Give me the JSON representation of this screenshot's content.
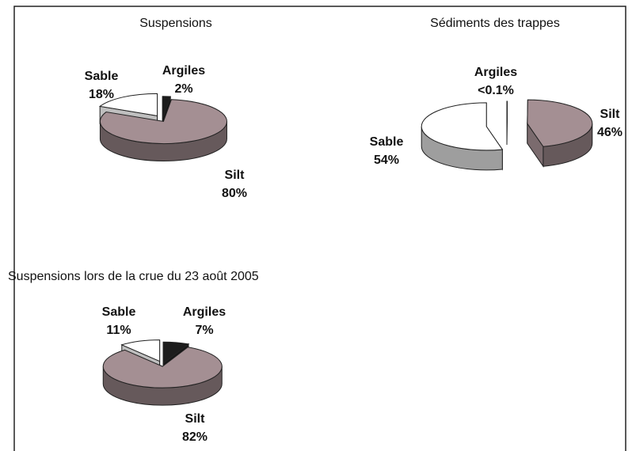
{
  "chart_data": [
    {
      "type": "pie",
      "title": "Suspensions",
      "categories": [
        "Argiles",
        "Silt",
        "Sable"
      ],
      "values": [
        2,
        80,
        18
      ],
      "value_labels": [
        "2%",
        "80%",
        "18%"
      ],
      "colors": [
        "#1c1c1c",
        "#a48f93",
        "#ffffff"
      ]
    },
    {
      "type": "pie",
      "title": "Sédiments des trappes",
      "categories": [
        "Argiles",
        "Silt",
        "Sable"
      ],
      "values": [
        0.1,
        46,
        54
      ],
      "value_labels": [
        "<0.1%",
        "46%",
        "54%"
      ],
      "colors": [
        "#1c1c1c",
        "#a48f93",
        "#ffffff"
      ]
    },
    {
      "type": "pie",
      "title": "Suspensions lors de la crue du 23 août 2005",
      "categories": [
        "Argiles",
        "Silt",
        "Sable"
      ],
      "values": [
        7,
        82,
        11
      ],
      "value_labels": [
        "7%",
        "82%",
        "11%"
      ],
      "colors": [
        "#1c1c1c",
        "#a48f93",
        "#ffffff"
      ]
    }
  ]
}
